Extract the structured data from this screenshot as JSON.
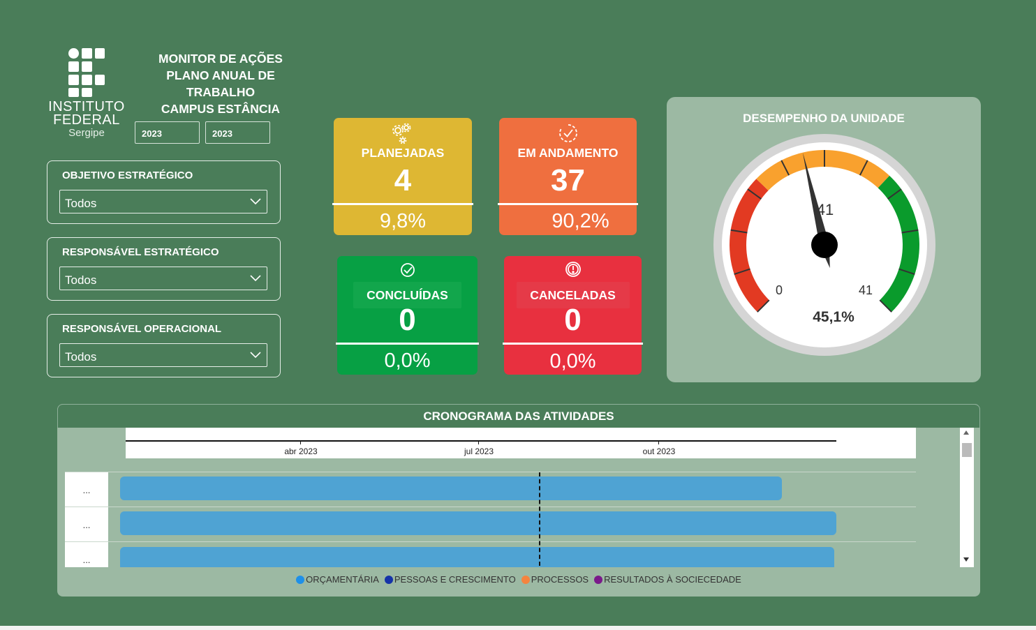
{
  "header": {
    "logo_line1": "INSTITUTO",
    "logo_line2": "FEDERAL",
    "logo_line3": "Sergipe",
    "title_line1": "MONITOR DE AÇÕES",
    "title_line2": "PLANO ANUAL DE TRABALHO",
    "title_line3": "CAMPUS ESTÂNCIA",
    "year_from": "2023",
    "year_to": "2023"
  },
  "filters": [
    {
      "title": "OBJETIVO ESTRATÉGICO",
      "value": "Todos"
    },
    {
      "title": "RESPONSÁVEL ESTRATÉGICO",
      "value": "Todos"
    },
    {
      "title": "RESPONSÁVEL OPERACIONAL",
      "value": "Todos"
    }
  ],
  "cards": {
    "planejadas": {
      "label": "PLANEJADAS",
      "count": "4",
      "pct": "9,8%",
      "color": "#deb733",
      "icon": "gears-icon"
    },
    "andamento": {
      "label": "EM ANDAMENTO",
      "count": "37",
      "pct": "90,2%",
      "color": "#ef6f3f",
      "icon": "progress-check-icon"
    },
    "concluidas": {
      "label": "CONCLUÍDAS",
      "count": "0",
      "pct": "0,0%",
      "color": "#07a044",
      "icon": "check-circle-icon"
    },
    "canceladas": {
      "label": "CANCELADAS",
      "count": "0",
      "pct": "0,0%",
      "color": "#e8303f",
      "icon": "alert-circle-icon"
    }
  },
  "gauge": {
    "title": "DESEMPENHO DA UNIDADE",
    "min_label": "0",
    "max_label": "41",
    "target_label": "41",
    "value_label": "45,1%",
    "value_fraction": 0.451,
    "colors": {
      "low": "#e23a22",
      "mid": "#f9a12e",
      "high": "#0a9b2c"
    }
  },
  "chronogram": {
    "title": "CRONOGRAMA DAS ATIVIDADES",
    "axis_labels": [
      "abr 2023",
      "jul 2023",
      "out 2023"
    ],
    "rows": [
      {
        "label": "...",
        "start": "2023-01-01",
        "end": "2023-11-30"
      },
      {
        "label": "...",
        "start": "2023-01-01",
        "end": "2023-12-31"
      },
      {
        "label": "...",
        "start": "2023-01-01",
        "end": "2023-12-31"
      }
    ],
    "today_marker": "2023-08-04",
    "bar_color": "#4fa3d3",
    "legend": [
      {
        "label": "ORÇAMENTÁRIA",
        "color": "#1e90e8"
      },
      {
        "label": "PESSOAS E CRESCIMENTO",
        "color": "#1533a8"
      },
      {
        "label": "PROCESSOS",
        "color": "#f5843f"
      },
      {
        "label": "RESULTADOS À SOCIECEDADE",
        "color": "#7a1a8a"
      }
    ]
  }
}
